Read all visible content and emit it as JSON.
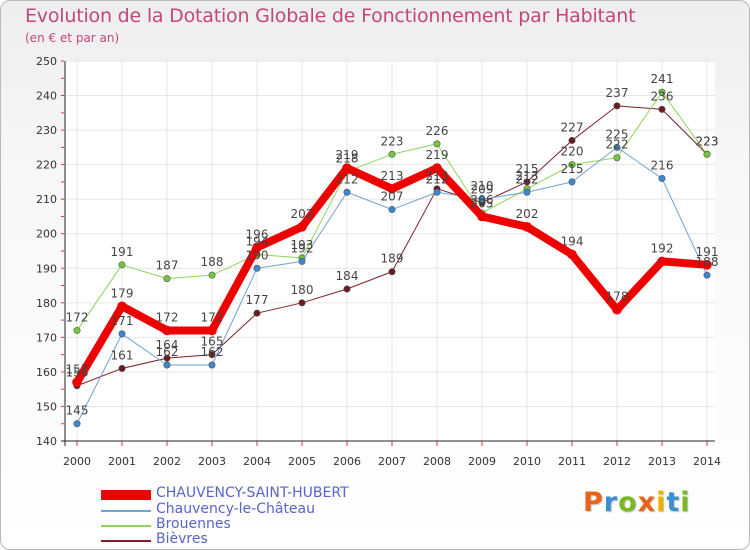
{
  "title": "Evolution de la Dotation Globale de Fonctionnement par Habitant",
  "subtitle": "(en € et par an)",
  "logo": {
    "text": "Proxiti",
    "colors": [
      "#e8641b",
      "#3a8fd1",
      "#7ab829",
      "#e8641b",
      "#f0b000",
      "#3a8fd1",
      "#7ab829"
    ]
  },
  "chart_data": {
    "type": "line",
    "x": [
      "2000",
      "2001",
      "2002",
      "2003",
      "2004",
      "2005",
      "2006",
      "2007",
      "2008",
      "2009",
      "2010",
      "2011",
      "2012",
      "2013",
      "2014"
    ],
    "ylim": [
      140,
      250
    ],
    "yticks": [
      "140",
      "150",
      "160",
      "170",
      "180",
      "190",
      "200",
      "210",
      "220",
      "230",
      "240",
      "250"
    ],
    "grid": true,
    "series": [
      {
        "name": "Bièvres",
        "color": "#7b1f27",
        "dot": "#6b1a20",
        "width": 1,
        "values": [
          156,
          161,
          164,
          165,
          177,
          180,
          184,
          189,
          213,
          209,
          215,
          227,
          237,
          236,
          223
        ],
        "labels": [
          "156",
          "161",
          "164",
          "165",
          "177",
          "180",
          "184",
          "189",
          "213",
          "209",
          "215",
          "227",
          "237",
          "236",
          "223"
        ]
      },
      {
        "name": "Brouennes",
        "color": "#8fd45a",
        "dot": "#72c83a",
        "width": 1,
        "values": [
          172,
          191,
          187,
          188,
          194,
          193,
          218,
          223,
          226,
          206,
          213,
          220,
          222,
          241,
          223
        ],
        "labels": [
          "172",
          "191",
          "187",
          "188",
          "194",
          "193",
          "218",
          "223",
          "226",
          "206",
          "213",
          "220",
          "222",
          "241",
          "223"
        ]
      },
      {
        "name": "Chauvency-le-Château",
        "color": "#6ea2d2",
        "dot": "#3d87d0",
        "width": 1,
        "values": [
          145,
          171,
          162,
          162,
          190,
          192,
          212,
          207,
          212,
          210,
          212,
          215,
          225,
          216,
          188
        ],
        "labels": [
          "145",
          "171",
          "162",
          "162",
          "190",
          "192",
          "212",
          "207",
          "212",
          "210",
          "212",
          "215",
          "225",
          "216",
          "188"
        ]
      },
      {
        "name": "CHAUVENCY-SAINT-HUBERT",
        "color": "#ee0000",
        "dot": "#ee0000",
        "width": 8,
        "values": [
          157,
          179,
          172,
          172,
          196,
          202,
          219,
          213,
          219,
          205,
          202,
          194,
          178,
          192,
          191
        ],
        "labels": [
          "157",
          "179",
          "172",
          "172",
          "196",
          "202",
          "219",
          "213",
          "219",
          "205",
          "202",
          "194",
          "178",
          "192",
          "191"
        ]
      }
    ]
  },
  "legend": [
    {
      "name": "CHAUVENCY-SAINT-HUBERT",
      "color": "#ee0000",
      "thickness": 10
    },
    {
      "name": "Chauvency-le-Château",
      "color": "#6ea2d2",
      "thickness": 2
    },
    {
      "name": "Brouennes",
      "color": "#8fd45a",
      "thickness": 2
    },
    {
      "name": "Bièvres",
      "color": "#7b1f27",
      "thickness": 2
    }
  ]
}
